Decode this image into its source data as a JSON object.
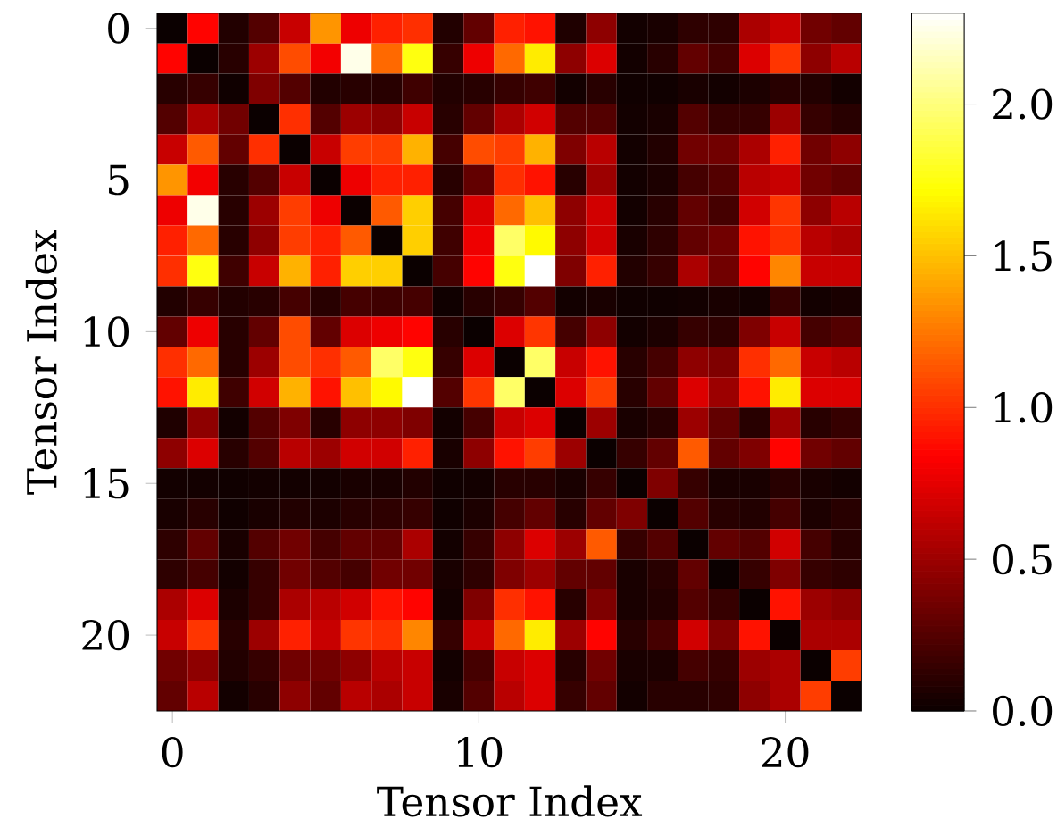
{
  "chart_data": {
    "type": "heatmap",
    "xlabel": "Tensor Index",
    "ylabel": "Tensor Index",
    "categories": [
      "0",
      null,
      null,
      null,
      null,
      null,
      null,
      null,
      null,
      null,
      "10",
      null,
      null,
      null,
      null,
      null,
      null,
      null,
      null,
      null,
      "20",
      null,
      null
    ],
    "y_categories": [
      "0",
      null,
      null,
      null,
      null,
      "5",
      null,
      null,
      null,
      null,
      "10",
      null,
      null,
      null,
      null,
      "15",
      null,
      null,
      null,
      null,
      "20",
      null,
      null
    ],
    "cells": [
      [
        0,
        0.85,
        0.08,
        0.25,
        0.65,
        1.35,
        0.78,
        0.95,
        1.0,
        0.08,
        0.3,
        0.95,
        0.9,
        0.07,
        0.45,
        0.03,
        0.05,
        0.12,
        0.12,
        0.55,
        0.65,
        0.35,
        0.3
      ],
      [
        0.85,
        0,
        0.1,
        0.5,
        1.1,
        0.8,
        2.25,
        1.2,
        1.75,
        0.15,
        0.78,
        1.2,
        1.65,
        0.45,
        0.72,
        0.03,
        0.1,
        0.3,
        0.2,
        0.72,
        1.02,
        0.45,
        0.6
      ],
      [
        0.1,
        0.15,
        0.02,
        0.4,
        0.25,
        0.08,
        0.1,
        0.1,
        0.18,
        0.08,
        0.1,
        0.15,
        0.18,
        0.03,
        0.1,
        0.02,
        0.02,
        0.05,
        0.03,
        0.06,
        0.1,
        0.08,
        0.03
      ],
      [
        0.25,
        0.55,
        0.35,
        0,
        1.0,
        0.25,
        0.5,
        0.45,
        0.65,
        0.1,
        0.3,
        0.55,
        0.68,
        0.25,
        0.25,
        0.03,
        0.05,
        0.25,
        0.15,
        0.15,
        0.5,
        0.15,
        0.1
      ],
      [
        0.65,
        1.15,
        0.3,
        1.0,
        0,
        0.65,
        1.05,
        1.05,
        1.45,
        0.2,
        1.1,
        1.05,
        1.45,
        0.4,
        0.6,
        0.03,
        0.08,
        0.35,
        0.35,
        0.55,
        0.95,
        0.35,
        0.45
      ],
      [
        1.35,
        0.8,
        0.1,
        0.25,
        0.65,
        0,
        0.78,
        0.95,
        0.95,
        0.1,
        0.3,
        1.0,
        0.9,
        0.1,
        0.5,
        0.03,
        0.06,
        0.2,
        0.25,
        0.6,
        0.65,
        0.35,
        0.3
      ],
      [
        0.78,
        2.25,
        0.1,
        0.5,
        1.05,
        0.78,
        0,
        1.15,
        1.55,
        0.2,
        0.72,
        1.2,
        1.5,
        0.45,
        0.68,
        0.03,
        0.1,
        0.3,
        0.2,
        0.68,
        1.02,
        0.45,
        0.6
      ],
      [
        0.95,
        1.2,
        0.1,
        0.45,
        1.05,
        0.95,
        1.15,
        0,
        1.55,
        0.18,
        0.78,
        1.95,
        1.7,
        0.45,
        0.68,
        0.05,
        0.12,
        0.3,
        0.35,
        0.9,
        1.0,
        0.6,
        0.55
      ],
      [
        1.0,
        1.75,
        0.18,
        0.65,
        1.45,
        0.95,
        1.55,
        1.55,
        0,
        0.2,
        0.85,
        1.75,
        2.3,
        0.4,
        0.95,
        0.08,
        0.15,
        0.55,
        0.35,
        0.85,
        1.3,
        0.65,
        0.65
      ],
      [
        0.08,
        0.15,
        0.08,
        0.1,
        0.2,
        0.1,
        0.2,
        0.18,
        0.2,
        0.02,
        0.1,
        0.15,
        0.25,
        0.03,
        0.05,
        0.02,
        0.02,
        0.03,
        0.05,
        0.03,
        0.15,
        0.03,
        0.05
      ],
      [
        0.3,
        0.78,
        0.1,
        0.3,
        1.1,
        0.3,
        0.72,
        0.78,
        0.85,
        0.1,
        0,
        0.72,
        1.02,
        0.2,
        0.45,
        0.03,
        0.06,
        0.15,
        0.12,
        0.4,
        0.65,
        0.2,
        0.25
      ],
      [
        1.0,
        1.2,
        0.1,
        0.5,
        1.1,
        1.0,
        1.15,
        1.95,
        1.75,
        0.15,
        0.72,
        0,
        1.95,
        0.65,
        0.9,
        0.1,
        0.2,
        0.45,
        0.4,
        1.0,
        1.2,
        0.65,
        0.6
      ],
      [
        0.9,
        1.65,
        0.18,
        0.68,
        1.45,
        0.9,
        1.5,
        1.7,
        2.3,
        0.25,
        1.02,
        1.95,
        0,
        0.72,
        1.05,
        0.1,
        0.3,
        0.72,
        0.5,
        0.9,
        1.65,
        0.72,
        0.72
      ],
      [
        0.07,
        0.45,
        0.03,
        0.25,
        0.4,
        0.1,
        0.45,
        0.45,
        0.4,
        0.03,
        0.2,
        0.65,
        0.72,
        0,
        0.5,
        0.05,
        0.1,
        0.5,
        0.3,
        0.1,
        0.5,
        0.1,
        0.15
      ],
      [
        0.45,
        0.72,
        0.1,
        0.25,
        0.6,
        0.5,
        0.68,
        0.68,
        0.95,
        0.05,
        0.45,
        0.9,
        1.05,
        0.5,
        0,
        0.15,
        0.3,
        1.15,
        0.3,
        0.4,
        0.85,
        0.35,
        0.3
      ],
      [
        0.03,
        0.03,
        0.02,
        0.03,
        0.03,
        0.03,
        0.05,
        0.05,
        0.08,
        0.02,
        0.03,
        0.1,
        0.1,
        0.05,
        0.15,
        0,
        0.4,
        0.15,
        0.05,
        0.05,
        0.1,
        0.05,
        0.03
      ],
      [
        0.05,
        0.1,
        0.02,
        0.05,
        0.08,
        0.06,
        0.1,
        0.12,
        0.15,
        0.02,
        0.06,
        0.2,
        0.3,
        0.1,
        0.3,
        0.4,
        0,
        0.25,
        0.1,
        0.08,
        0.2,
        0.06,
        0.1
      ],
      [
        0.12,
        0.3,
        0.05,
        0.25,
        0.35,
        0.2,
        0.3,
        0.3,
        0.55,
        0.03,
        0.15,
        0.45,
        0.72,
        0.5,
        1.15,
        0.15,
        0.25,
        0,
        0.3,
        0.25,
        0.68,
        0.2,
        0.1
      ],
      [
        0.12,
        0.2,
        0.03,
        0.15,
        0.35,
        0.25,
        0.2,
        0.35,
        0.35,
        0.05,
        0.12,
        0.4,
        0.5,
        0.3,
        0.3,
        0.05,
        0.1,
        0.3,
        0,
        0.15,
        0.4,
        0.15,
        0.12
      ],
      [
        0.55,
        0.72,
        0.06,
        0.15,
        0.55,
        0.6,
        0.68,
        0.9,
        0.85,
        0.03,
        0.4,
        1.0,
        0.9,
        0.1,
        0.4,
        0.05,
        0.08,
        0.25,
        0.15,
        0,
        0.9,
        0.5,
        0.45
      ],
      [
        0.65,
        1.02,
        0.1,
        0.5,
        0.95,
        0.65,
        1.02,
        1.0,
        1.3,
        0.15,
        0.65,
        1.2,
        1.65,
        0.5,
        0.85,
        0.1,
        0.2,
        0.68,
        0.4,
        0.9,
        0,
        0.55,
        0.55
      ],
      [
        0.35,
        0.45,
        0.08,
        0.15,
        0.35,
        0.35,
        0.45,
        0.6,
        0.65,
        0.03,
        0.2,
        0.65,
        0.72,
        0.1,
        0.35,
        0.05,
        0.06,
        0.2,
        0.15,
        0.5,
        0.55,
        0,
        1.05
      ],
      [
        0.3,
        0.6,
        0.03,
        0.1,
        0.45,
        0.3,
        0.6,
        0.55,
        0.65,
        0.05,
        0.25,
        0.6,
        0.72,
        0.15,
        0.3,
        0.03,
        0.1,
        0.1,
        0.12,
        0.45,
        0.55,
        1.05,
        0
      ]
    ],
    "clim": [
      0,
      2.3
    ],
    "cticks": [
      {
        "value": 0,
        "label": "0.0"
      },
      {
        "value": 0.5,
        "label": "0.5"
      },
      {
        "value": 1,
        "label": "1.0"
      },
      {
        "value": 1.5,
        "label": "1.5"
      },
      {
        "value": 2,
        "label": "2.0"
      }
    ]
  }
}
